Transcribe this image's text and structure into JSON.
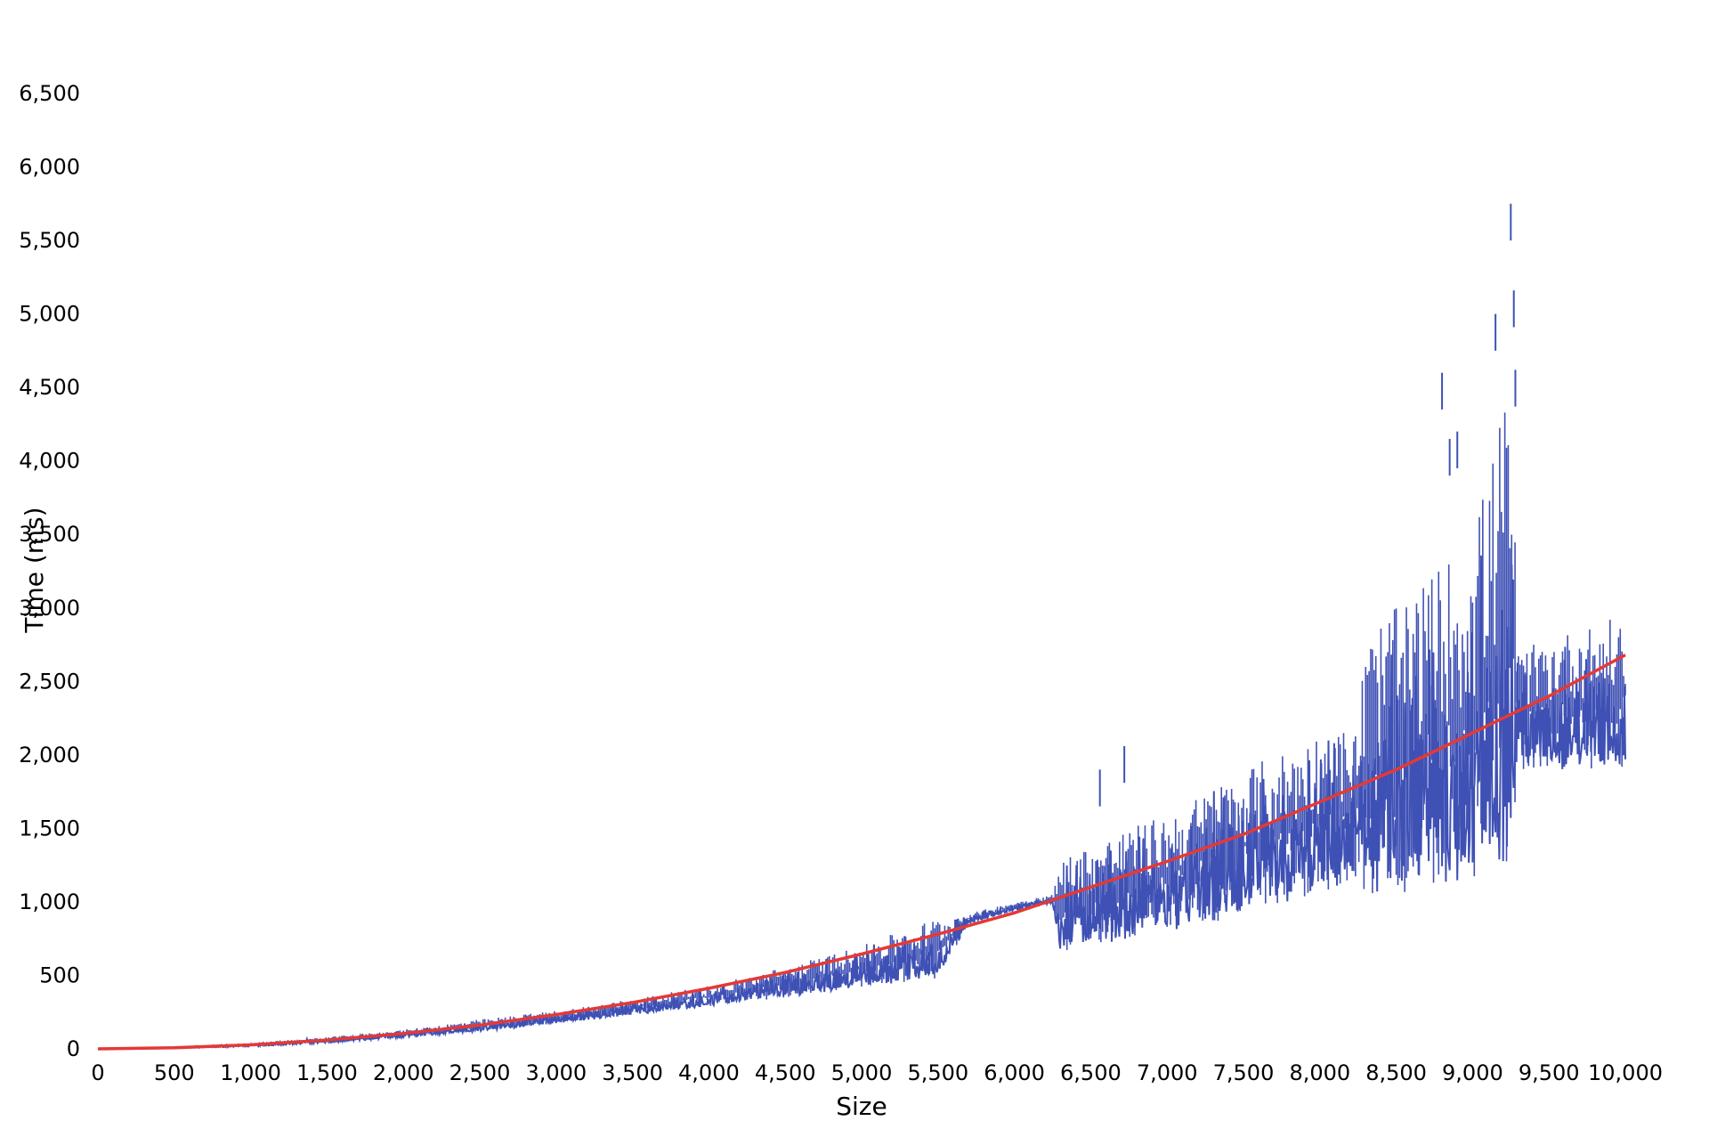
{
  "chart_data": {
    "type": "line",
    "title": "",
    "xlabel": "Size",
    "ylabel": "Time (ms)",
    "xlim": [
      0,
      10000
    ],
    "ylim": [
      0,
      6500
    ],
    "xticks": [
      "0",
      "500",
      "1,000",
      "1,500",
      "2,000",
      "2,500",
      "3,000",
      "3,500",
      "4,000",
      "4,500",
      "5,000",
      "5,500",
      "6,000",
      "6,500",
      "7,000",
      "7,500",
      "8,000",
      "8,500",
      "9,000",
      "9,500",
      "10,000"
    ],
    "xtick_values": [
      0,
      500,
      1000,
      1500,
      2000,
      2500,
      3000,
      3500,
      4000,
      4500,
      5000,
      5500,
      6000,
      6500,
      7000,
      7500,
      8000,
      8500,
      9000,
      9500,
      10000
    ],
    "yticks": [
      "0",
      "500",
      "1,000",
      "1,500",
      "2,000",
      "2,500",
      "3,000",
      "3,500",
      "4,000",
      "4,500",
      "5,000",
      "5,500",
      "6,000",
      "6,500"
    ],
    "ytick_values": [
      0,
      500,
      1000,
      1500,
      2000,
      2500,
      3000,
      3500,
      4000,
      4500,
      5000,
      5500,
      6000,
      6500
    ],
    "grid": false,
    "legend": "none",
    "series": [
      {
        "color": "#3F51B5",
        "style": "noisy-band",
        "x": [
          0,
          500,
          1000,
          1500,
          2000,
          2500,
          3000,
          3500,
          4000,
          4500,
          5000,
          5500,
          5700,
          6000,
          6250,
          6300,
          6500,
          7000,
          7500,
          8000,
          8250,
          8300,
          8500,
          9000,
          9250,
          9300,
          9500,
          10000
        ],
        "low": [
          0,
          3,
          15,
          40,
          75,
          120,
          170,
          230,
          290,
          350,
          420,
          480,
          850,
          940,
          990,
          650,
          700,
          800,
          900,
          1050,
          1150,
          1000,
          1050,
          1150,
          1200,
          1900,
          1900,
          1900
        ],
        "high": [
          0,
          10,
          40,
          80,
          130,
          200,
          260,
          340,
          430,
          560,
          700,
          900,
          920,
          1000,
          1050,
          1300,
          1400,
          1600,
          1900,
          2150,
          2200,
          2850,
          3000,
          3500,
          4600,
          2700,
          2800,
          2950
        ],
        "outliers": [
          [
            6560,
            1900
          ],
          [
            6720,
            2060
          ],
          [
            8800,
            4600
          ],
          [
            8850,
            4150
          ],
          [
            8900,
            4200
          ],
          [
            9150,
            5000
          ],
          [
            9250,
            5750
          ],
          [
            9270,
            5160
          ],
          [
            9280,
            4620
          ]
        ]
      },
      {
        "color": "#E53935",
        "style": "trend",
        "x": [
          0,
          500,
          1000,
          1500,
          2000,
          2500,
          3000,
          3500,
          4000,
          4500,
          5000,
          5500,
          6000,
          6500,
          7000,
          7500,
          8000,
          8500,
          9000,
          9500,
          10000
        ],
        "values": [
          0,
          8,
          27,
          60,
          105,
          162,
          233,
          315,
          412,
          520,
          645,
          780,
          925,
          1100,
          1275,
          1460,
          1680,
          1900,
          2150,
          2400,
          2680
        ]
      }
    ]
  }
}
